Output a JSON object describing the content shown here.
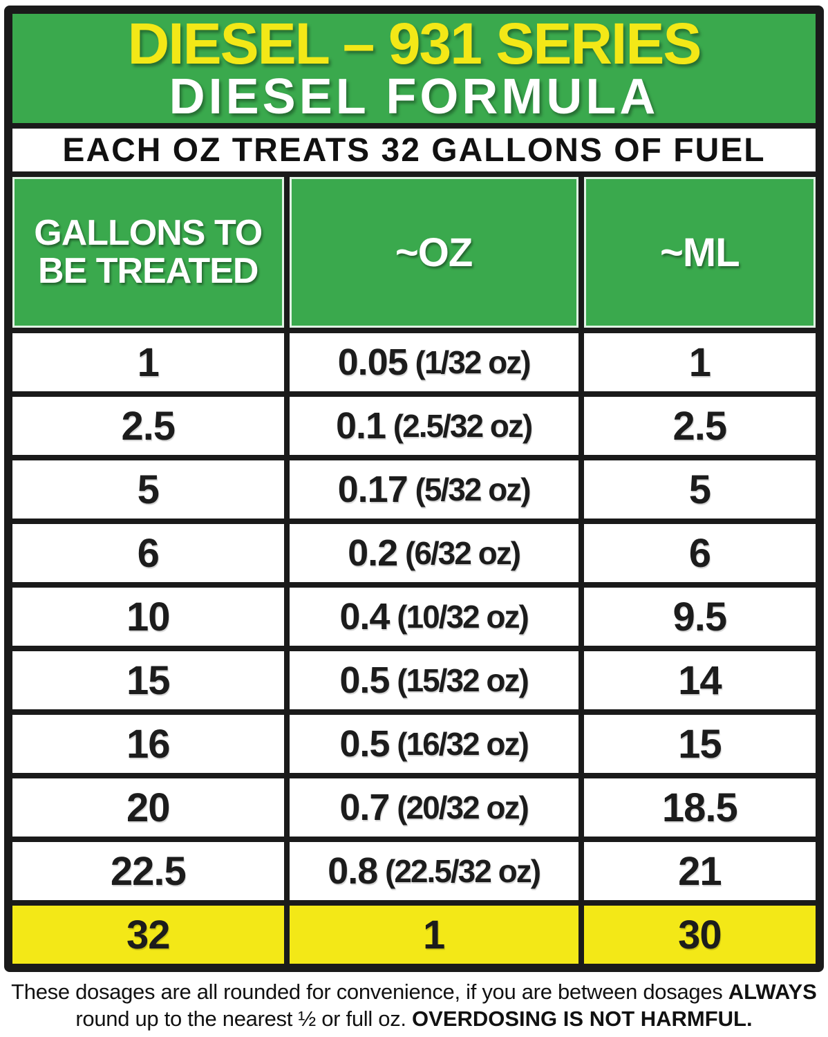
{
  "header": {
    "title_line1": "DIESEL – 931 SERIES",
    "title_line2": "DIESEL FORMULA",
    "banner": "EACH OZ TREATS 32 GALLONS OF FUEL"
  },
  "chart_data": {
    "type": "table",
    "title": "DIESEL – 931 SERIES DIESEL FORMULA",
    "subtitle": "EACH OZ TREATS 32 GALLONS OF FUEL",
    "columns": [
      "GALLONS TO BE TREATED",
      "~OZ",
      "~ML"
    ],
    "rows": [
      [
        "1",
        "0.05 (1/32 oz)",
        "1"
      ],
      [
        "2.5",
        "0.1 (2.5/32 oz)",
        "2.5"
      ],
      [
        "5",
        "0.17 (5/32 oz)",
        "5"
      ],
      [
        "6",
        "0.2 (6/32 oz)",
        "6"
      ],
      [
        "10",
        "0.4 (10/32 oz)",
        "9.5"
      ],
      [
        "15",
        "0.5 (15/32 oz)",
        "14"
      ],
      [
        "16",
        "0.5 (16/32 oz)",
        "15"
      ],
      [
        "20",
        "0.7 (20/32 oz)",
        "18.5"
      ],
      [
        "22.5",
        "0.8 (22.5/32 oz)",
        "21"
      ],
      [
        "32",
        "1",
        "30"
      ]
    ],
    "highlighted_row_index": 9,
    "footnote": "These dosages are all rounded for convenience, if you are between dosages ALWAYS round up to the nearest ½ or full oz. OVERDOSING IS NOT HARMFUL."
  },
  "footnote_segments": [
    {
      "text": "These dosages are all rounded for convenience, if you are between dosages ",
      "bold": false
    },
    {
      "text": "ALWAYS",
      "bold": true
    },
    {
      "text": "\nround up to the nearest ½ or full oz. ",
      "bold": false
    },
    {
      "text": "OVERDOSING IS NOT HARMFUL.",
      "bold": true
    }
  ],
  "colors": {
    "green": "#3aa94d",
    "yellow": "#f3e817",
    "black": "#1a1a1a"
  }
}
